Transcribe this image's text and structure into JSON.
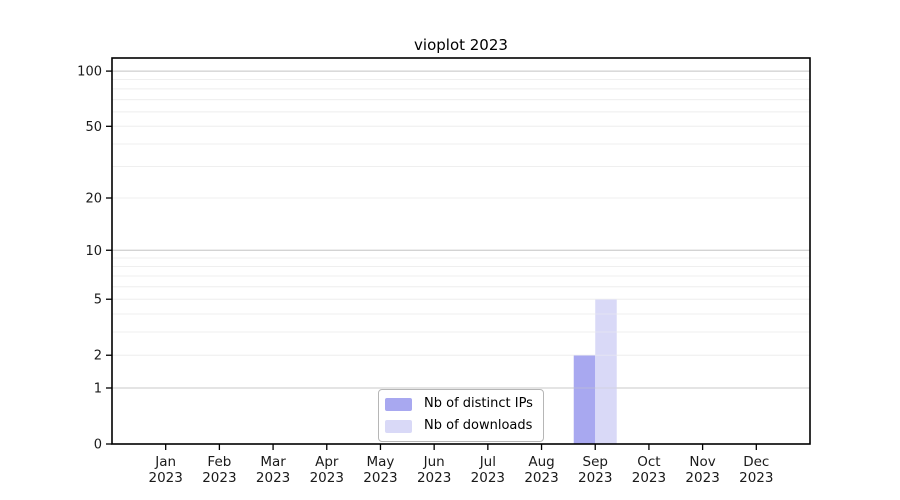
{
  "title": "vioplot 2023",
  "chart_data": {
    "type": "bar",
    "title": "vioplot 2023",
    "categories": [
      "Jan 2023",
      "Feb 2023",
      "Mar 2023",
      "Apr 2023",
      "May 2023",
      "Jun 2023",
      "Jul 2023",
      "Aug 2023",
      "Sep 2023",
      "Oct 2023",
      "Nov 2023",
      "Dec 2023"
    ],
    "series": [
      {
        "name": "Nb of distinct IPs",
        "color": "#a8a8f0",
        "values": [
          0,
          0,
          0,
          0,
          0,
          0,
          0,
          0,
          2,
          0,
          0,
          0
        ]
      },
      {
        "name": "Nb of downloads",
        "color": "#d9d9f7",
        "values": [
          0,
          0,
          0,
          0,
          0,
          0,
          0,
          0,
          5,
          0,
          0,
          0
        ]
      }
    ],
    "yscale": "log1p",
    "y_ticks": [
      0,
      1,
      2,
      5,
      10,
      20,
      50,
      100
    ],
    "ylim": [
      0,
      118
    ],
    "xlabel": "",
    "ylabel": "",
    "grid": {
      "major_values": [
        1,
        10,
        100
      ],
      "minor_values": [
        2,
        3,
        4,
        5,
        6,
        7,
        8,
        9,
        20,
        30,
        40,
        50,
        60,
        70,
        80,
        90
      ],
      "major_color": "#c9c9c9",
      "minor_color": "#efefef"
    },
    "legend": {
      "position": "inside-bottom-center"
    },
    "axis_color": "#000000",
    "tick_label_color": "#1a1a1a"
  }
}
